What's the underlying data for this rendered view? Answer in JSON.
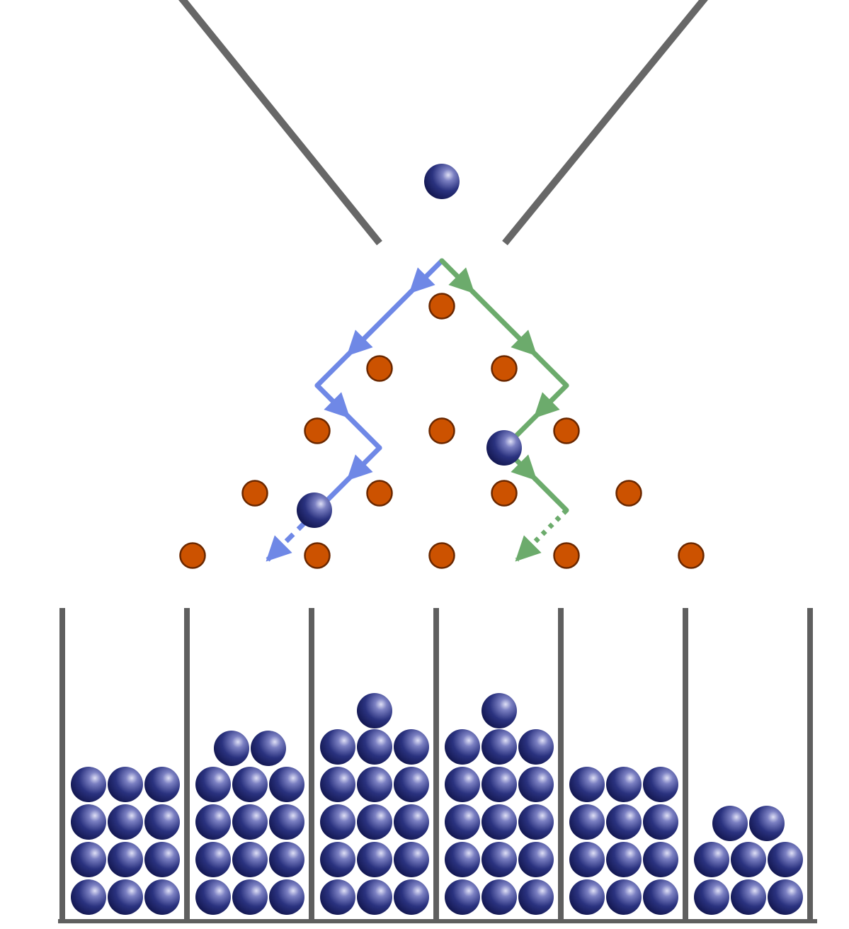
{
  "diagram": {
    "type": "galton-board",
    "colors": {
      "background": "#ffffff",
      "funnel": "#676767",
      "peg": "#cc5200",
      "peg_outline": "#6b2800",
      "ball": "#232b78",
      "ball_highlight": "#c9cbf0",
      "bin_wall": "#5f5f5f",
      "path_left": "#6f88e6",
      "path_right": "#6cab6c"
    },
    "peg_rows": [
      1,
      2,
      3,
      4,
      5
    ],
    "bin_count": 6,
    "bin_ball_counts": [
      12,
      14,
      16,
      16,
      12,
      8
    ],
    "falling_balls": 3,
    "paths": [
      {
        "id": "left-path",
        "color_key": "path_left",
        "directions": [
          "left",
          "left",
          "right",
          "left",
          "left"
        ],
        "final_step_style": "dashed"
      },
      {
        "id": "right-path",
        "color_key": "path_right",
        "directions": [
          "right",
          "right",
          "left",
          "right",
          "left"
        ],
        "final_step_style": "dotted"
      }
    ],
    "icons": [
      "ball-icon",
      "peg-icon",
      "arrowhead-icon"
    ]
  }
}
